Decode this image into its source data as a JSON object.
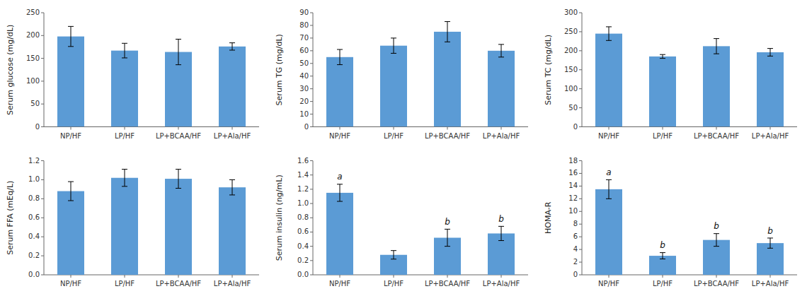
{
  "chart_data": [
    {
      "type": "bar",
      "ylabel": "Serum glucose (mg/dL)",
      "categories": [
        "NP/HF",
        "LP/HF",
        "LP+BCAA/HF",
        "LP+Ala/HF"
      ],
      "values": [
        198,
        167,
        164,
        176
      ],
      "errors": [
        22,
        16,
        28,
        8
      ],
      "color": "#5b9bd5",
      "ylim": [
        0,
        250
      ],
      "yticks": [
        0,
        50,
        100,
        150,
        200,
        250
      ]
    },
    {
      "type": "bar",
      "ylabel": "Serum TG (mg/dL)",
      "categories": [
        "NP/HF",
        "LP/HF",
        "LP+BCAA/HF",
        "LP+Ala/HF"
      ],
      "values": [
        55,
        64,
        75,
        60
      ],
      "errors": [
        6,
        6,
        8,
        5
      ],
      "color": "#5b9bd5",
      "ylim": [
        0,
        90
      ],
      "yticks": [
        0,
        10,
        20,
        30,
        40,
        50,
        60,
        70,
        80,
        90
      ]
    },
    {
      "type": "bar",
      "ylabel": "Serum TC (mg/dL)",
      "categories": [
        "NP/HF",
        "LP/HF",
        "LP+BCAA/HF",
        "LP+Ala/HF"
      ],
      "values": [
        245,
        185,
        212,
        196
      ],
      "errors": [
        18,
        5,
        20,
        10
      ],
      "color": "#5b9bd5",
      "ylim": [
        0,
        300
      ],
      "yticks": [
        0,
        50,
        100,
        150,
        200,
        250,
        300
      ]
    },
    {
      "type": "bar",
      "ylabel": "Serum FFA (mEq/L)",
      "categories": [
        "NP/HF",
        "LP/HF",
        "LP+BCAA/HF",
        "LP+Ala/HF"
      ],
      "values": [
        0.88,
        1.02,
        1.01,
        0.92
      ],
      "errors": [
        0.1,
        0.09,
        0.1,
        0.08
      ],
      "color": "#5b9bd5",
      "ylim": [
        0,
        1.2
      ],
      "yticks": [
        {
          "value": 0,
          "label": "0.0"
        },
        0.2,
        0.4,
        0.6,
        0.8,
        {
          "value": 1,
          "label": "1.0"
        },
        1.2
      ]
    },
    {
      "type": "bar",
      "ylabel": "Serum insulin (ng/mL)",
      "categories": [
        "NP/HF",
        "LP/HF",
        "LP+BCAA/HF",
        "LP+Ala/HF"
      ],
      "values": [
        1.15,
        0.28,
        0.52,
        0.58
      ],
      "errors": [
        0.12,
        0.06,
        0.12,
        0.1
      ],
      "annotations": [
        "a",
        null,
        "b",
        "b"
      ],
      "color": "#5b9bd5",
      "ylim": [
        0,
        1.6
      ],
      "yticks": [
        {
          "value": 0,
          "label": "0.0"
        },
        0.2,
        0.4,
        0.6,
        0.8,
        {
          "value": 1,
          "label": "1.0"
        },
        1.2,
        1.4,
        1.6
      ]
    },
    {
      "type": "bar",
      "ylabel": "HOMA-R",
      "categories": [
        "NP/HF",
        "LP/HF",
        "LP+BCAA/HF",
        "LP+Ala/HF"
      ],
      "values": [
        13.5,
        3.0,
        5.5,
        5.0
      ],
      "errors": [
        1.5,
        0.5,
        1.0,
        0.8
      ],
      "annotations": [
        "a",
        "b",
        "b",
        "b"
      ],
      "color": "#5b9bd5",
      "ylim": [
        0,
        18
      ],
      "yticks": [
        0,
        2,
        4,
        6,
        8,
        10,
        12,
        14,
        16,
        18
      ]
    }
  ]
}
